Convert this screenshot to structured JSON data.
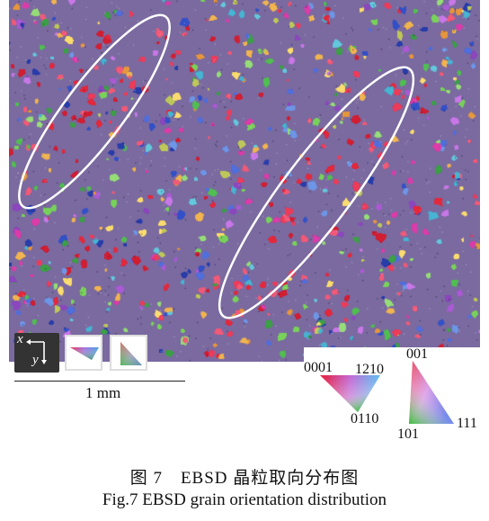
{
  "scale_bar": {
    "label": "1 mm"
  },
  "axes": {
    "x_label": "x",
    "y_label": "y"
  },
  "legend_hex": {
    "corner_left": "0001",
    "corner_right": "1210",
    "corner_bottom": "0110"
  },
  "legend_cubic": {
    "corner_top": "001",
    "corner_left": "101",
    "corner_right": "111"
  },
  "caption": {
    "chinese": "图 7　EBSD 晶粒取向分布图",
    "english": "Fig.7 EBSD grain orientation distribution"
  },
  "colors": {
    "red": "#e8303a",
    "green": "#5cc84b",
    "blue": "#3a58c8",
    "highlight_ellipse": "#ffffff"
  }
}
